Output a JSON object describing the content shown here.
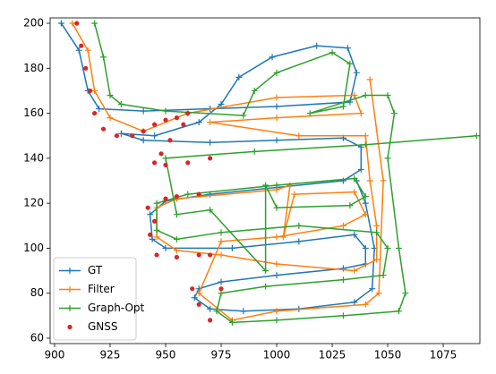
{
  "chart_data": {
    "type": "line",
    "xlim": [
      898,
      1091.5
    ],
    "ylim": [
      57.6,
      202.4
    ],
    "xticks": [
      900,
      925,
      950,
      975,
      1000,
      1025,
      1050,
      1075
    ],
    "yticks": [
      60,
      80,
      100,
      120,
      140,
      160,
      180,
      200
    ],
    "legend": "lower left",
    "series": [
      {
        "name": "GT",
        "color": "#1f77b4",
        "line": true,
        "marker": "+",
        "x": [
          903,
          911,
          915,
          920,
          940,
          970,
          1000,
          1033,
          1036,
          1032,
          1018,
          998,
          983,
          975,
          965,
          945,
          930,
          940,
          970,
          1000,
          1030,
          1038,
          1038,
          1030,
          1000,
          970,
          950,
          943,
          944,
          950,
          980,
          1010,
          1035,
          1040,
          1040,
          1030,
          1000,
          975,
          965,
          963,
          970,
          985,
          1010,
          1035,
          1043,
          1044,
          1040,
          1036
        ],
        "values": [
          200,
          188,
          170,
          162,
          161,
          162,
          163,
          165,
          178,
          189,
          190,
          185,
          176,
          164,
          156,
          150,
          151,
          148,
          147,
          148,
          149,
          145,
          135,
          130,
          127,
          124,
          121,
          115,
          104,
          100,
          100,
          103,
          106,
          100,
          93,
          91,
          88,
          85,
          82,
          78,
          73,
          72,
          73,
          76,
          82,
          100,
          120,
          130
        ]
      },
      {
        "name": "Filter",
        "color": "#ff7f0e",
        "line": true,
        "marker": "+",
        "x": [
          908,
          915,
          918,
          925,
          940,
          960,
          1000,
          1035,
          1038,
          1000,
          970,
          1010,
          1040,
          1042,
          1045,
          1045,
          1035,
          1000,
          975,
          955,
          946,
          946,
          955,
          1000,
          1006,
          1003,
          1008,
          1035,
          1040,
          1030,
          1000,
          975,
          965,
          980,
          1000,
          1040,
          1046,
          1048,
          1042
        ],
        "values": [
          200,
          188,
          170,
          158,
          152,
          160,
          167,
          168,
          160,
          158,
          156,
          150,
          150,
          130,
          110,
          95,
          90,
          93,
          97,
          99,
          105,
          118,
          122,
          126,
          128,
          105,
          124,
          125,
          115,
          110,
          105,
          103,
          80,
          68,
          72,
          75,
          80,
          130,
          175
        ]
      },
      {
        "name": "Graph-Opt",
        "color": "#2ca02c",
        "line": true,
        "marker": "+",
        "x": [
          918,
          922,
          925,
          930,
          950,
          985,
          990,
          1000,
          1025,
          1033,
          1030,
          1015,
          1040,
          1050,
          1053,
          1050,
          1055,
          1058,
          1055,
          1030,
          1000,
          980,
          973,
          975,
          995,
          1030,
          1048,
          1050,
          1045,
          1010,
          975,
          955,
          946,
          946,
          960,
          1000,
          1035,
          1040,
          1033,
          1000,
          995,
          995,
          970,
          955,
          950,
          990,
          1040,
          1090
        ],
        "values": [
          200,
          185,
          168,
          164,
          161,
          159,
          170,
          178,
          187,
          182,
          163,
          160,
          168,
          168,
          160,
          140,
          100,
          80,
          72,
          70,
          68,
          67,
          72,
          80,
          83,
          86,
          88,
          100,
          107,
          110,
          107,
          104,
          108,
          120,
          124,
          128,
          131,
          123,
          119,
          118,
          128,
          90,
          117,
          115,
          140,
          143,
          146,
          150
        ]
      },
      {
        "name": "GNSS",
        "color": "#d62728",
        "line": false,
        "marker": "o",
        "x": [
          910,
          912,
          914,
          916,
          918,
          922,
          928,
          935,
          940,
          945,
          950,
          955,
          960,
          958,
          952,
          948,
          945,
          950,
          960,
          970,
          945,
          943,
          946,
          955,
          965,
          970,
          942,
          950,
          955,
          965,
          962,
          965,
          970,
          975
        ],
        "values": [
          200,
          190,
          180,
          170,
          160,
          153,
          150,
          150,
          152,
          155,
          157,
          158,
          160,
          155,
          148,
          142,
          138,
          137,
          138,
          140,
          112,
          106,
          97,
          96,
          97,
          97,
          118,
          122,
          123,
          124,
          82,
          75,
          68,
          82
        ]
      }
    ]
  }
}
